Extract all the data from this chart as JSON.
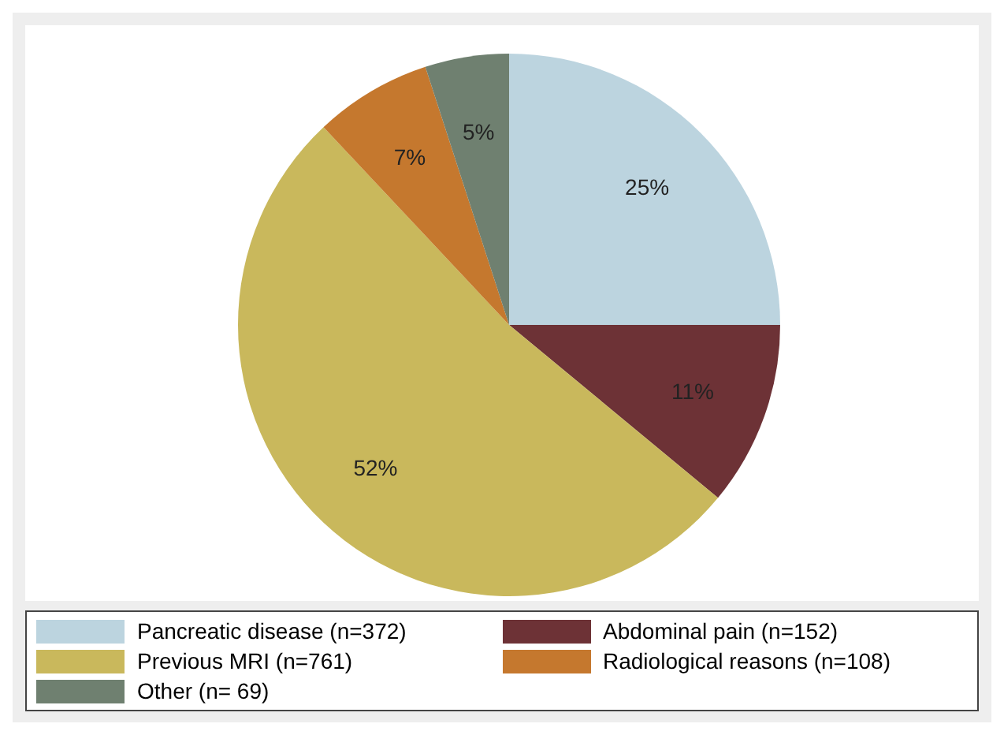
{
  "chart_data": {
    "type": "pie",
    "categories": [
      "Pancreatic disease (n=372)",
      "Abdominal pain (n=152)",
      "Previous MRI (n=761)",
      "Radiological reasons (n=108)",
      "Other (n= 69)"
    ],
    "values": [
      25,
      11,
      52,
      7,
      5
    ],
    "colors": [
      "#bcd4df",
      "#6d3236",
      "#c9b85c",
      "#c5782e",
      "#6f8070"
    ],
    "value_labels": [
      "25%",
      "11%",
      "52%",
      "7%",
      "5%"
    ],
    "legend": "bottom"
  }
}
